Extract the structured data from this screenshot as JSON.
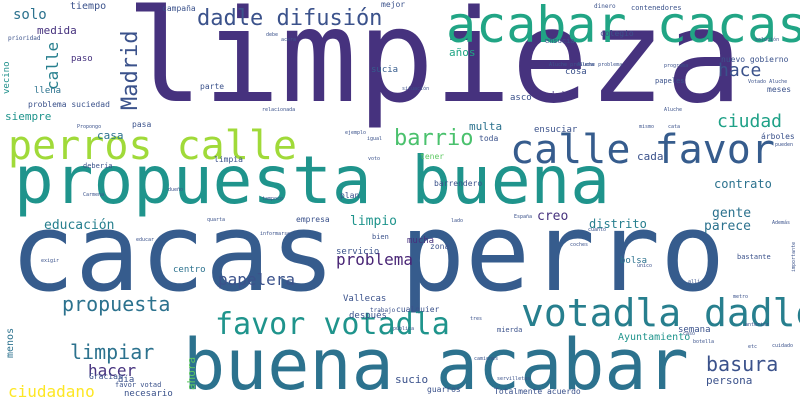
{
  "wordcloud": {
    "words": [
      {
        "text": "limpieza",
        "color": "#46327e"
      },
      {
        "text": "cacas perro",
        "color": "#365c8d"
      },
      {
        "text": "propuesta buena",
        "color": "#1f948c"
      },
      {
        "text": "buena acabar",
        "color": "#2c728e"
      },
      {
        "text": "acabar cacas",
        "color": "#21a585"
      },
      {
        "text": "perros calle",
        "color": "#a0da39"
      },
      {
        "text": "calle favor",
        "color": "#365c8d"
      },
      {
        "text": "votadla dadle",
        "color": "#277f8e"
      },
      {
        "text": "favor votadla",
        "color": "#1f948c"
      },
      {
        "text": "dadle difusión",
        "color": "#3b528b"
      },
      {
        "text": "Madrid",
        "color": "#3b528b"
      },
      {
        "text": "barrio",
        "color": "#4ac16d"
      },
      {
        "text": "propuesta",
        "color": "#2c728e"
      },
      {
        "text": "limpiar",
        "color": "#2c728e"
      },
      {
        "text": "basura",
        "color": "#3b528b"
      },
      {
        "text": "ciudad",
        "color": "#1fa187"
      },
      {
        "text": "hace",
        "color": "#3b528b"
      },
      {
        "text": "problema",
        "color": "#482475"
      },
      {
        "text": "papelera",
        "color": "#3b528b"
      },
      {
        "text": "hacer",
        "color": "#46327e"
      },
      {
        "text": "ciudadano",
        "color": "#fde725"
      },
      {
        "text": "calle",
        "color": "#277f8e"
      },
      {
        "text": "solo",
        "color": "#2c728e"
      },
      {
        "text": "tiempo",
        "color": "#3b528b"
      },
      {
        "text": "medida",
        "color": "#46327e"
      },
      {
        "text": "educación",
        "color": "#277f8e"
      },
      {
        "text": "limpio",
        "color": "#1f948c"
      },
      {
        "text": "gente",
        "color": "#2c728e"
      },
      {
        "text": "parece",
        "color": "#2c728e"
      },
      {
        "text": "contrato",
        "color": "#2c728e"
      },
      {
        "text": "distrito",
        "color": "#277f8e"
      },
      {
        "text": "creo",
        "color": "#46327e"
      },
      {
        "text": "casa",
        "color": "#2c728e"
      },
      {
        "text": "años",
        "color": "#21a585"
      },
      {
        "text": "siempre",
        "color": "#1f948c"
      },
      {
        "text": "multa",
        "color": "#2c728e"
      },
      {
        "text": "cada",
        "color": "#3b528b"
      },
      {
        "text": "persona",
        "color": "#3b528b"
      },
      {
        "text": "ahora",
        "color": "#5ec962"
      },
      {
        "text": "sucio",
        "color": "#3b528b"
      },
      {
        "text": "Ayuntamiento",
        "color": "#1f948c"
      },
      {
        "text": "menos",
        "color": "#2c728e"
      },
      {
        "text": "vecino",
        "color": "#21918c"
      },
      {
        "text": "paso",
        "color": "#46327e"
      },
      {
        "text": "sucia",
        "color": "#365c8d"
      },
      {
        "text": "llena",
        "color": "#2c728e"
      },
      {
        "text": "centro",
        "color": "#2c728e"
      },
      {
        "text": "servicio",
        "color": "#3b528b"
      },
      {
        "text": "mucha",
        "color": "#46327e"
      },
      {
        "text": "Vallecas",
        "color": "#3b528b"
      },
      {
        "text": "después",
        "color": "#3b528b"
      },
      {
        "text": "bolsa",
        "color": "#2c728e"
      },
      {
        "text": "día",
        "color": "#3b528b"
      },
      {
        "text": "necesario",
        "color": "#3b528b"
      },
      {
        "text": "semana",
        "color": "#3b528b"
      },
      {
        "text": "ensuciar",
        "color": "#3b528b"
      },
      {
        "text": "dejan",
        "color": "#46327e"
      },
      {
        "text": "asco",
        "color": "#3b528b"
      },
      {
        "text": "cosa",
        "color": "#3b528b"
      },
      {
        "text": "mejor",
        "color": "#3b528b"
      },
      {
        "text": "colegio",
        "color": "#3b528b"
      },
      {
        "text": "meses",
        "color": "#3b528b"
      },
      {
        "text": "nuevo gobierno",
        "color": "#3b528b"
      },
      {
        "text": "barrendero",
        "color": "#3b528b"
      },
      {
        "text": "zona",
        "color": "#3b528b"
      },
      {
        "text": "pasa",
        "color": "#3b528b"
      },
      {
        "text": "tener",
        "color": "#5ec962"
      },
      {
        "text": "toda",
        "color": "#3b528b"
      },
      {
        "text": "parte",
        "color": "#3b528b"
      },
      {
        "text": "campaña",
        "color": "#3b528b"
      },
      {
        "text": "plan",
        "color": "#3b528b"
      },
      {
        "text": "empresa",
        "color": "#3b528b"
      },
      {
        "text": "limpia",
        "color": "#3b528b"
      },
      {
        "text": "problema suciedad",
        "color": "#3b528b"
      },
      {
        "text": "Totalmente acuerdo",
        "color": "#3b528b"
      },
      {
        "text": "guarros",
        "color": "#3b528b"
      },
      {
        "text": "cualquier",
        "color": "#3b528b"
      },
      {
        "text": "trabajo",
        "color": "#3b528b"
      },
      {
        "text": "favor votad",
        "color": "#3b528b"
      },
      {
        "text": "Gracias",
        "color": "#3b528b"
      },
      {
        "text": "mierda",
        "color": "#3b528b"
      },
      {
        "text": "ensucia",
        "color": "#3b528b"
      },
      {
        "text": "contenedores",
        "color": "#3b528b"
      },
      {
        "text": "dinero",
        "color": "#3b528b"
      },
      {
        "text": "Aluche problema",
        "color": "#3b528b"
      },
      {
        "text": "situación",
        "color": "#3b528b"
      },
      {
        "text": "Aluche",
        "color": "#3b528b"
      },
      {
        "text": "árboles",
        "color": "#3b528b"
      },
      {
        "text": "Además",
        "color": "#3b528b"
      },
      {
        "text": "cuanto",
        "color": "#3b528b"
      },
      {
        "text": "botella",
        "color": "#3b528b"
      },
      {
        "text": "caso",
        "color": "#3b528b"
      },
      {
        "text": "bastante",
        "color": "#3b528b"
      },
      {
        "text": "importante",
        "color": "#3b528b"
      },
      {
        "text": "debería",
        "color": "#3b528b"
      },
      {
        "text": "ejemplo",
        "color": "#3b528b"
      },
      {
        "text": "voto",
        "color": "#3b528b"
      },
      {
        "text": "igual",
        "color": "#3b528b"
      },
      {
        "text": "educar",
        "color": "#3b528b"
      },
      {
        "text": "exigir",
        "color": "#3b528b"
      },
      {
        "text": "bien",
        "color": "#3b528b"
      },
      {
        "text": "lado",
        "color": "#3b528b"
      },
      {
        "text": "pública",
        "color": "#3b528b"
      },
      {
        "text": "tres",
        "color": "#3b528b"
      },
      {
        "text": "mismo",
        "color": "#3b528b"
      },
      {
        "text": "cata",
        "color": "#3b528b"
      },
      {
        "text": "Carmena",
        "color": "#3b528b"
      },
      {
        "text": "dueño",
        "color": "#3b528b"
      },
      {
        "text": "metro",
        "color": "#3b528b"
      },
      {
        "text": "coches",
        "color": "#3b528b"
      },
      {
        "text": "camiones",
        "color": "#3b528b"
      },
      {
        "text": "servilletas",
        "color": "#3b528b"
      },
      {
        "text": "pueden",
        "color": "#3b528b"
      },
      {
        "text": "España",
        "color": "#3b528b"
      },
      {
        "text": "único",
        "color": "#3b528b"
      },
      {
        "text": "allí",
        "color": "#3b528b"
      },
      {
        "text": "solución",
        "color": "#3b528b"
      },
      {
        "text": "prioridad",
        "color": "#3b528b"
      },
      {
        "text": "programa",
        "color": "#3b528b"
      },
      {
        "text": "papeles",
        "color": "#3b528b"
      },
      {
        "text": "relacionada",
        "color": "#3b528b"
      },
      {
        "text": "debe",
        "color": "#3b528b"
      },
      {
        "text": "acera",
        "color": "#3b528b"
      },
      {
        "text": "Propongo",
        "color": "#3b528b"
      },
      {
        "text": "Votado Aluche",
        "color": "#3b528b"
      },
      {
        "text": "Aluche problema",
        "color": "#3b528b"
      },
      {
        "text": "informarse",
        "color": "#3b528b"
      },
      {
        "text": "tampoco",
        "color": "#3b528b"
      },
      {
        "text": "quarta",
        "color": "#3b528b"
      },
      {
        "text": "cuidado",
        "color": "#3b528b"
      },
      {
        "text": "anterior",
        "color": "#3b528b"
      },
      {
        "text": "etc",
        "color": "#3b528b"
      },
      {
        "text": "cuidado",
        "color": "#3b528b"
      },
      {
        "text": "documento",
        "color": "#3b528b"
      },
      {
        "text": "limpios",
        "color": "#3b528b"
      },
      {
        "text": "llevar",
        "color": "#3b528b"
      },
      {
        "text": "puede",
        "color": "#3b528b"
      },
      {
        "text": "base",
        "color": "#3b528b"
      },
      {
        "text": "tanto",
        "color": "#3b528b"
      },
      {
        "text": "hecho",
        "color": "#3b528b"
      },
      {
        "text": "vecinos",
        "color": "#3b528b"
      },
      {
        "text": "claro",
        "color": "#3b528b"
      },
      {
        "text": "alguien",
        "color": "#3b528b"
      },
      {
        "text": "cuenta",
        "color": "#3b528b"
      },
      {
        "text": "verdad",
        "color": "#3b528b"
      },
      {
        "text": "multas",
        "color": "#3b528b"
      },
      {
        "text": "culillos",
        "color": "#3b528b"
      },
      {
        "text": "primero",
        "color": "#3b528b"
      },
      {
        "text": "mantener Carabanchel",
        "color": "#3b528b"
      },
      {
        "text": "colillas",
        "color": "#3b528b"
      },
      {
        "text": "tan",
        "color": "#3b528b"
      },
      {
        "text": "total",
        "color": "#3b528b"
      },
      {
        "text": "suele",
        "color": "#3b528b"
      },
      {
        "text": "animal",
        "color": "#3b528b"
      },
      {
        "text": "hacen",
        "color": "#3b528b"
      },
      {
        "text": "dejar",
        "color": "#3b528b"
      },
      {
        "text": "números",
        "color": "#3b528b"
      },
      {
        "text": "sido",
        "color": "#3b528b"
      },
      {
        "text": "calles",
        "color": "#3b528b"
      },
      {
        "text": "nadie",
        "color": "#3b528b"
      },
      {
        "text": "dejan",
        "color": "#3b528b"
      },
      {
        "text": "pocos",
        "color": "#3b528b"
      },
      {
        "text": "mejorar",
        "color": "#3b528b"
      },
      {
        "text": "hacerlo",
        "color": "#3b528b"
      },
      {
        "text": "recogida",
        "color": "#3b528b"
      },
      {
        "text": "gusta",
        "color": "#3b528b"
      },
      {
        "text": "parques",
        "color": "#3b528b"
      },
      {
        "text": "vez",
        "color": "#3b528b"
      },
      {
        "text": "todas",
        "color": "#3b528b"
      },
      {
        "text": "espacio",
        "color": "#3b528b"
      },
      {
        "text": "hora",
        "color": "#3b528b"
      },
      {
        "text": "lugar",
        "color": "#3b528b"
      },
      {
        "text": "poner",
        "color": "#3b528b"
      },
      {
        "text": "vida",
        "color": "#3b528b"
      },
      {
        "text": "sanción",
        "color": "#3b528b"
      },
      {
        "text": "pagar",
        "color": "#3b528b"
      },
      {
        "text": "mal",
        "color": "#3b528b"
      },
      {
        "text": "sólo",
        "color": "#3b528b"
      },
      {
        "text": "parque",
        "color": "#3b528b"
      },
      {
        "text": "dueños",
        "color": "#3b528b"
      },
      {
        "text": "orina",
        "color": "#3b528b"
      },
      {
        "text": "medio",
        "color": "#3b528b"
      },
      {
        "text": "días",
        "color": "#3b528b"
      }
    ]
  }
}
